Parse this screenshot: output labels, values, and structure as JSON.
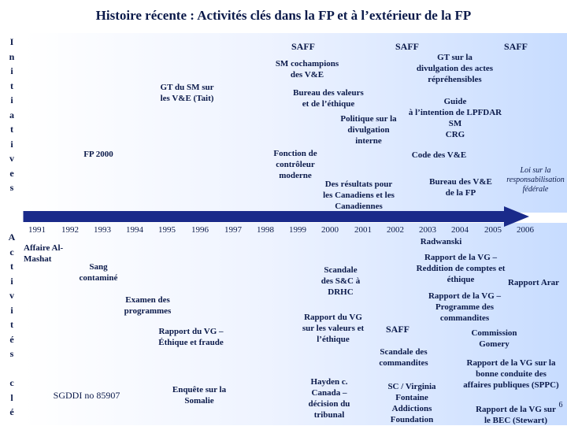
{
  "title": "Histoire récente : Activités clés dans la FP et à l’extérieur de la FP",
  "side_top": [
    "I",
    "n",
    "i",
    "t",
    "i",
    "a",
    "t",
    "i",
    "v",
    "e",
    "s"
  ],
  "side_bottom": [
    "A",
    "c",
    "t",
    "i",
    "v",
    "i",
    "t",
    "é",
    "s",
    "",
    "c",
    "l",
    "é"
  ],
  "years": [
    "1991",
    "1992",
    "1993",
    "1994",
    "1995",
    "1996",
    "1997",
    "1998",
    "1999",
    "2000",
    "2001",
    "2002",
    "2003",
    "2004",
    "2005",
    "2006"
  ],
  "initiatives": {
    "saff1": "SAFF",
    "saff2": "SAFF",
    "saff3": "SAFF",
    "sm_champions": "SM cochampions\ndes V&E",
    "gt_sm": "GT du SM sur\nles V&E (Tait)",
    "gt_divulgation": "GT sur la\ndivulgation des actes\nrépréhensibles",
    "bureau_valeurs": "Bureau des valeurs\net de l’éthique",
    "guide": "Guide\nà l’intention de LPFDAR\nSM\nCRG",
    "politique": "Politique sur la\ndivulgation\ninterne",
    "fp2000": "FP 2000",
    "fonction_controleur": "Fonction de\ncontrôleur\nmoderne",
    "code_ve": "Code des V&E",
    "resultats": "Des résultats pour\nles Canadiens et les\nCanadiennes",
    "bureau_ve": "Bureau des V&E\nde la FP",
    "loi_resp": "Loi sur la\nresponsabilisation\nfédérale"
  },
  "activities": {
    "al_mashat": "Affaire Al-\nMashat",
    "sang": "Sang\ncontaminé",
    "examen": "Examen des\nprogrammes",
    "rapport_vg_ethique": "Rapport du VG –\nÉthique et fraude",
    "sgddi": "SGDDI no 85907",
    "enquete_somalie": "Enquête sur la\nSomalie",
    "scandale_drhc": "Scandale\ndes S&C à\nDRHC",
    "rapport_vg_valeurs": "Rapport du VG\nsur les valeurs et\nl’éthique",
    "hayden": "Hayden c.\nCanada –\ndécision du\ntribunal",
    "radwanski": "Radwanski",
    "rapport_reddition": "Rapport de la VG –\nReddition de comptes et\néthique",
    "rapport_arar": "Rapport Arar",
    "rapport_commandites": "Rapport de la VG –\nProgramme des\ncommandites",
    "saff": "SAFF",
    "scandale_commandites": "Scandale des\ncommandites",
    "commission_gomery": "Commission\nGomery",
    "sc_virginia": "SC / Virginia\nFontaine\nAddictions\nFoundation",
    "rapport_bonne_conduite": "Rapport de la VG sur la\nbonne conduite des\naffaires publiques (SPPC)",
    "rapport_stewart": "Rapport de la VG  sur\nle BEC (Stewart)",
    "page_number": "6"
  },
  "colors": {
    "text": "#0b1a4a",
    "arrow": "#1a2a8a",
    "panel_light": "#eef3ff",
    "panel_dark": "#c7dcff"
  }
}
